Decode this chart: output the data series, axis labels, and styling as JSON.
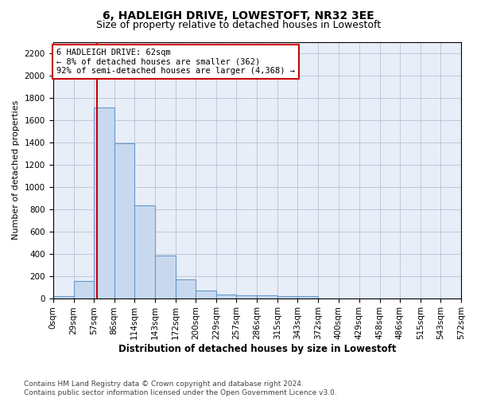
{
  "title1": "6, HADLEIGH DRIVE, LOWESTOFT, NR32 3EE",
  "title2": "Size of property relative to detached houses in Lowestoft",
  "xlabel": "Distribution of detached houses by size in Lowestoft",
  "ylabel": "Number of detached properties",
  "bin_edges": [
    0,
    29,
    57,
    86,
    114,
    143,
    172,
    200,
    229,
    257,
    286,
    315,
    343,
    372,
    400,
    429,
    458,
    486,
    515,
    543,
    572
  ],
  "bar_heights": [
    20,
    155,
    1710,
    1390,
    835,
    385,
    165,
    65,
    35,
    28,
    28,
    20,
    15,
    0,
    0,
    0,
    0,
    0,
    0,
    0
  ],
  "bar_color": "#c8d9ef",
  "bar_edge_color": "#6699cc",
  "property_size": 62,
  "property_line_color": "#cc0000",
  "annotation_line1": "6 HADLEIGH DRIVE: 62sqm",
  "annotation_line2": "← 8% of detached houses are smaller (362)",
  "annotation_line3": "92% of semi-detached houses are larger (4,368) →",
  "annotation_box_color": "#ffffff",
  "annotation_box_edge_color": "#cc0000",
  "ylim": [
    0,
    2300
  ],
  "yticks": [
    0,
    200,
    400,
    600,
    800,
    1000,
    1200,
    1400,
    1600,
    1800,
    2000,
    2200
  ],
  "background_color": "#e8eef8",
  "footer_text": "Contains HM Land Registry data © Crown copyright and database right 2024.\nContains public sector information licensed under the Open Government Licence v3.0.",
  "title1_fontsize": 10,
  "title2_fontsize": 9,
  "xlabel_fontsize": 8.5,
  "ylabel_fontsize": 8,
  "tick_fontsize": 7.5,
  "annotation_fontsize": 7.5,
  "footer_fontsize": 6.5
}
